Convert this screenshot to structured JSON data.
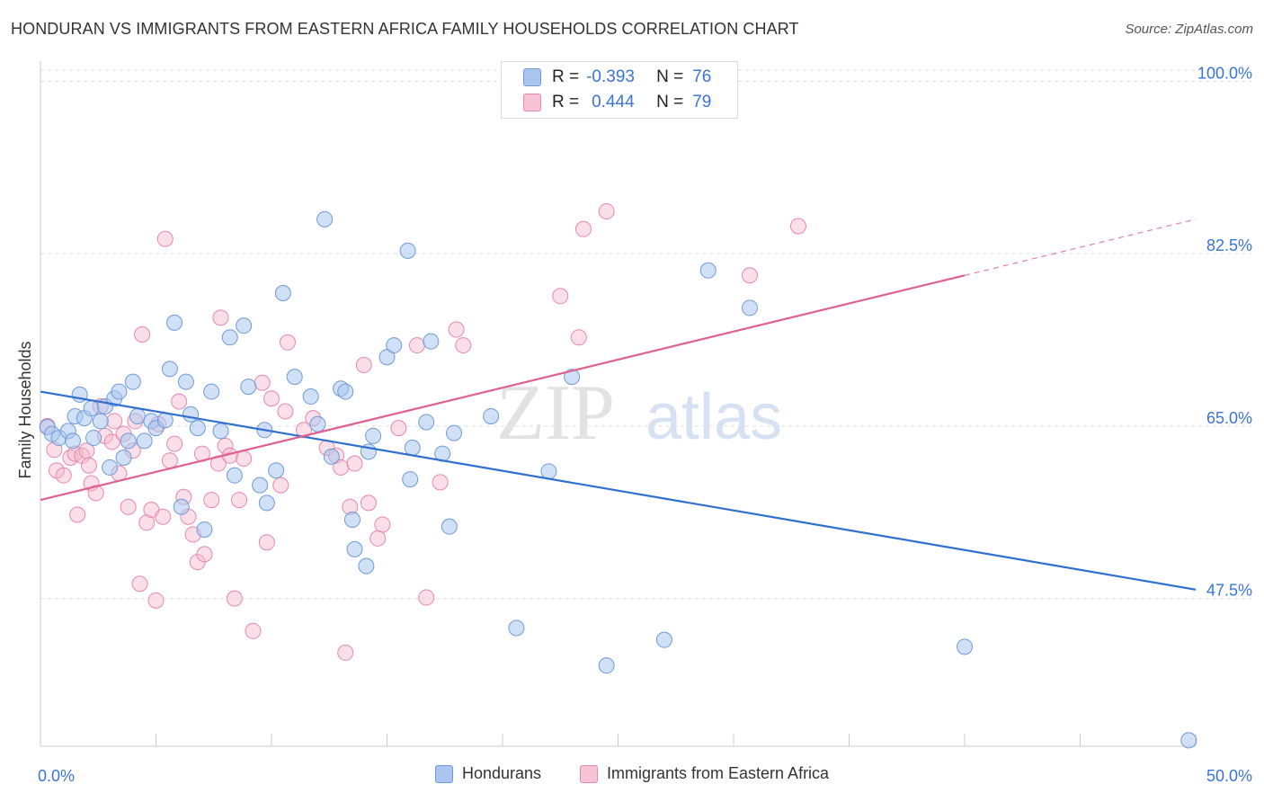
{
  "title": "HONDURAN VS IMMIGRANTS FROM EASTERN AFRICA FAMILY HOUSEHOLDS CORRELATION CHART",
  "source": "Source: ZipAtlas.com",
  "watermark": {
    "zip": "ZIP",
    "atlas": "atlas"
  },
  "legend": {
    "rows": [
      {
        "r_label": "R =",
        "r_value": "-0.393",
        "n_label": "N =",
        "n_value": "76"
      },
      {
        "r_label": "R =",
        "r_value": "0.444",
        "n_label": "N =",
        "n_value": "79"
      }
    ]
  },
  "bottom_legend": [
    "Hondurans",
    "Immigrants from Eastern Africa"
  ],
  "colors": {
    "blue_fill": "#aac6ee",
    "blue_stroke": "#6f9ad8",
    "blue_line": "#2f6fd0",
    "pink_fill": "#f6b8cc",
    "pink_stroke": "#e888a8",
    "pink_line": "#e06090",
    "tick_text": "#3a74d6",
    "grid": "#dddddd"
  },
  "chart_data": {
    "type": "scatter",
    "title": "HONDURAN VS IMMIGRANTS FROM EASTERN AFRICA FAMILY HOUSEHOLDS CORRELATION CHART",
    "xlabel": "",
    "ylabel": "Family Households",
    "xlim": [
      0,
      50
    ],
    "ylim": [
      32.5,
      101.5
    ],
    "x_tick_labels": [
      "0.0%",
      "50.0%"
    ],
    "y_ticks": [
      47.5,
      65.0,
      82.5,
      100.0
    ],
    "y_tick_labels": [
      "47.5%",
      "65.0%",
      "82.5%",
      "100.0%"
    ],
    "grid": true,
    "legend_position": "top-center",
    "series": [
      {
        "name": "Hondurans",
        "r": -0.393,
        "n": 76,
        "trend": {
          "x": [
            0,
            50
          ],
          "y": [
            68.5,
            48.4
          ]
        },
        "points": [
          [
            0.3,
            64.9
          ],
          [
            0.5,
            64.2
          ],
          [
            0.8,
            63.8
          ],
          [
            1.2,
            64.5
          ],
          [
            1.4,
            63.5
          ],
          [
            1.5,
            66.0
          ],
          [
            1.7,
            68.2
          ],
          [
            1.9,
            65.8
          ],
          [
            2.2,
            66.8
          ],
          [
            2.3,
            63.8
          ],
          [
            2.6,
            65.5
          ],
          [
            2.8,
            67.0
          ],
          [
            3.0,
            60.8
          ],
          [
            3.2,
            67.8
          ],
          [
            3.4,
            68.5
          ],
          [
            3.6,
            61.8
          ],
          [
            3.8,
            63.5
          ],
          [
            4.0,
            69.5
          ],
          [
            4.2,
            66.0
          ],
          [
            4.5,
            63.5
          ],
          [
            4.8,
            65.5
          ],
          [
            5.0,
            64.8
          ],
          [
            5.4,
            65.6
          ],
          [
            5.6,
            70.8
          ],
          [
            5.8,
            75.5
          ],
          [
            6.1,
            56.8
          ],
          [
            6.3,
            69.5
          ],
          [
            6.5,
            66.2
          ],
          [
            6.8,
            64.8
          ],
          [
            7.1,
            54.5
          ],
          [
            7.4,
            68.5
          ],
          [
            7.8,
            64.5
          ],
          [
            8.2,
            74.0
          ],
          [
            8.4,
            60.0
          ],
          [
            8.8,
            75.2
          ],
          [
            9.0,
            69.0
          ],
          [
            9.5,
            59.0
          ],
          [
            9.7,
            64.6
          ],
          [
            9.8,
            57.2
          ],
          [
            10.2,
            60.5
          ],
          [
            10.5,
            78.5
          ],
          [
            11.0,
            70.0
          ],
          [
            11.7,
            68.0
          ],
          [
            12.0,
            65.2
          ],
          [
            12.3,
            86.0
          ],
          [
            12.6,
            61.9
          ],
          [
            13.0,
            68.8
          ],
          [
            13.2,
            68.5
          ],
          [
            13.5,
            55.5
          ],
          [
            13.6,
            52.5
          ],
          [
            14.1,
            50.8
          ],
          [
            14.2,
            62.4
          ],
          [
            14.4,
            64.0
          ],
          [
            15.0,
            72.0
          ],
          [
            15.3,
            73.2
          ],
          [
            15.9,
            82.8
          ],
          [
            16.0,
            59.6
          ],
          [
            16.1,
            62.8
          ],
          [
            16.7,
            65.4
          ],
          [
            16.9,
            73.6
          ],
          [
            17.4,
            62.2
          ],
          [
            17.7,
            54.8
          ],
          [
            17.9,
            64.3
          ],
          [
            19.5,
            66.0
          ],
          [
            20.6,
            44.5
          ],
          [
            22.0,
            60.4
          ],
          [
            23.0,
            70.0
          ],
          [
            24.5,
            40.7
          ],
          [
            27.0,
            43.3
          ],
          [
            28.9,
            80.8
          ],
          [
            30.7,
            77.0
          ],
          [
            40.0,
            42.6
          ],
          [
            49.7,
            33.1
          ]
        ]
      },
      {
        "name": "Immigrants from Eastern Africa",
        "r": 0.444,
        "n": 79,
        "trend": {
          "x": [
            0,
            40
          ],
          "y": [
            57.5,
            80.3
          ]
        },
        "trend_dashed": {
          "x": [
            40,
            50
          ],
          "y": [
            80.3,
            86.0
          ]
        },
        "points": [
          [
            0.3,
            65.0
          ],
          [
            0.6,
            62.6
          ],
          [
            0.7,
            60.5
          ],
          [
            1.0,
            60.0
          ],
          [
            1.3,
            61.8
          ],
          [
            1.5,
            62.2
          ],
          [
            1.6,
            56.0
          ],
          [
            1.8,
            62.0
          ],
          [
            2.0,
            62.5
          ],
          [
            2.1,
            61.0
          ],
          [
            2.2,
            59.2
          ],
          [
            2.4,
            58.2
          ],
          [
            2.6,
            67.0
          ],
          [
            2.8,
            64.0
          ],
          [
            3.1,
            63.4
          ],
          [
            3.2,
            65.5
          ],
          [
            3.4,
            60.2
          ],
          [
            3.6,
            64.2
          ],
          [
            3.8,
            56.8
          ],
          [
            4.0,
            62.5
          ],
          [
            4.1,
            65.5
          ],
          [
            4.3,
            49.0
          ],
          [
            4.4,
            74.3
          ],
          [
            4.6,
            55.2
          ],
          [
            4.8,
            56.5
          ],
          [
            5.0,
            47.3
          ],
          [
            5.1,
            65.2
          ],
          [
            5.3,
            55.8
          ],
          [
            5.4,
            84.0
          ],
          [
            5.6,
            61.5
          ],
          [
            5.8,
            63.2
          ],
          [
            6.0,
            67.5
          ],
          [
            6.2,
            57.8
          ],
          [
            6.4,
            55.8
          ],
          [
            6.6,
            54.0
          ],
          [
            6.8,
            51.2
          ],
          [
            7.0,
            62.2
          ],
          [
            7.1,
            52.0
          ],
          [
            7.4,
            57.5
          ],
          [
            7.7,
            61.2
          ],
          [
            7.8,
            76.0
          ],
          [
            8.0,
            63.0
          ],
          [
            8.2,
            62.0
          ],
          [
            8.4,
            47.5
          ],
          [
            8.6,
            57.5
          ],
          [
            8.8,
            61.7
          ],
          [
            9.2,
            44.2
          ],
          [
            9.6,
            69.4
          ],
          [
            9.8,
            53.2
          ],
          [
            10.0,
            67.8
          ],
          [
            10.4,
            59.0
          ],
          [
            10.6,
            66.5
          ],
          [
            10.7,
            73.5
          ],
          [
            11.4,
            64.6
          ],
          [
            11.8,
            65.8
          ],
          [
            12.4,
            62.8
          ],
          [
            12.8,
            62.0
          ],
          [
            13.0,
            60.8
          ],
          [
            13.2,
            42.0
          ],
          [
            13.4,
            56.8
          ],
          [
            13.6,
            61.2
          ],
          [
            14.0,
            71.2
          ],
          [
            14.2,
            57.2
          ],
          [
            14.6,
            53.6
          ],
          [
            14.8,
            55.0
          ],
          [
            15.5,
            64.8
          ],
          [
            16.3,
            73.2
          ],
          [
            16.7,
            47.6
          ],
          [
            17.3,
            59.3
          ],
          [
            18.0,
            74.8
          ],
          [
            18.3,
            73.2
          ],
          [
            22.5,
            78.2
          ],
          [
            23.3,
            74.0
          ],
          [
            23.5,
            85.0
          ],
          [
            24.5,
            86.8
          ],
          [
            30.7,
            80.3
          ],
          [
            32.8,
            85.3
          ]
        ]
      }
    ]
  }
}
